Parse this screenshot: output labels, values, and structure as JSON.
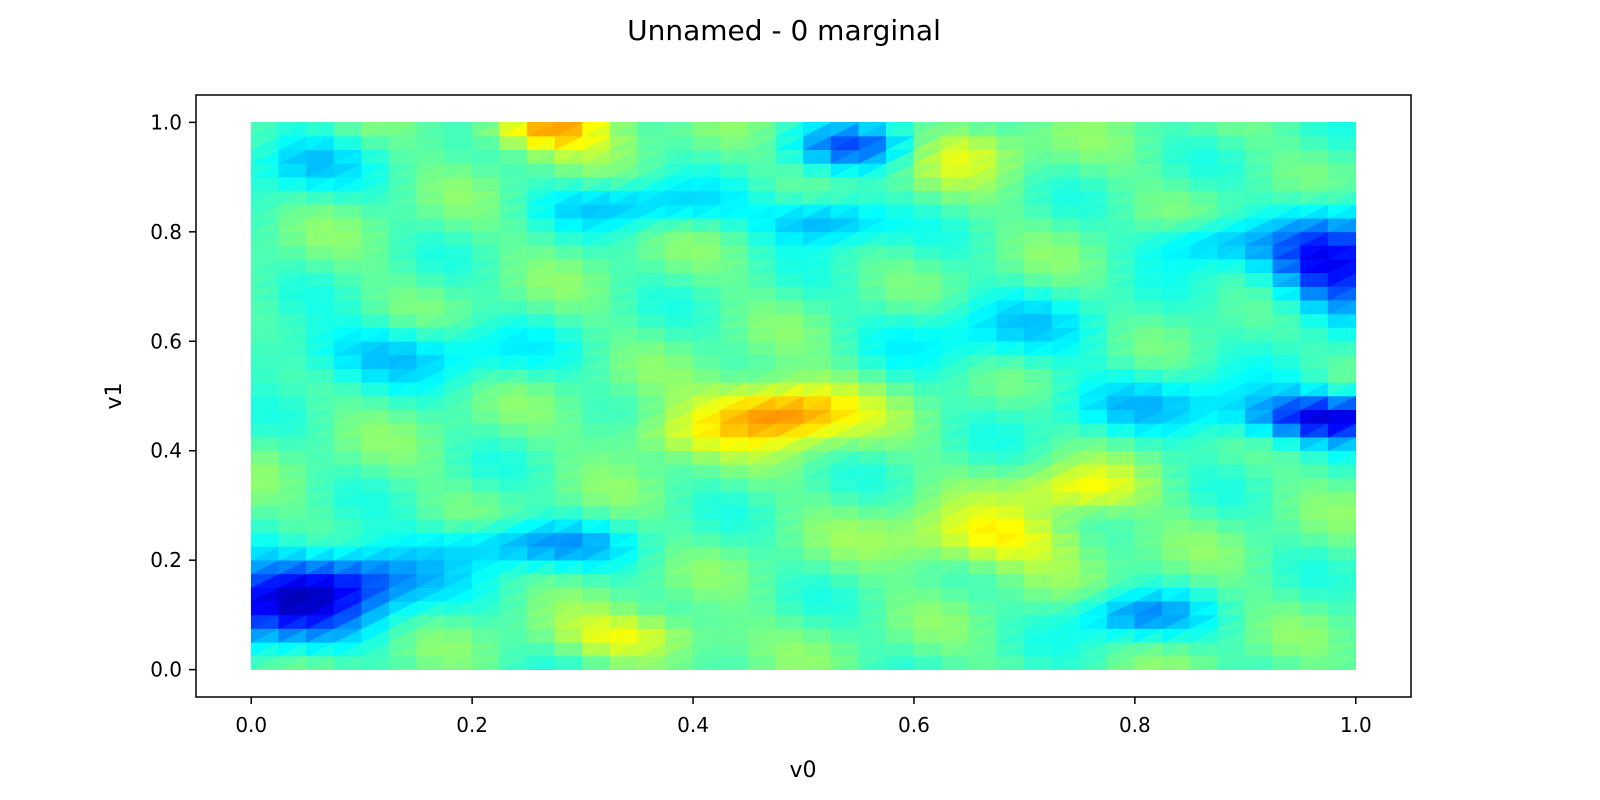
{
  "chart_data": {
    "type": "heatmap",
    "title": "Unnamed - 0 marginal",
    "xlabel": "v0",
    "ylabel": "v1",
    "xlim": [
      -0.05,
      1.05
    ],
    "ylim": [
      -0.05,
      1.05
    ],
    "x_ticks": [
      0.0,
      0.2,
      0.4,
      0.6,
      0.8,
      1.0
    ],
    "y_ticks": [
      0.0,
      0.2,
      0.4,
      0.6,
      0.8,
      1.0
    ],
    "x_tick_labels": [
      "0.0",
      "0.2",
      "0.4",
      "0.6",
      "0.8",
      "1.0"
    ],
    "y_tick_labels": [
      "0.0",
      "0.2",
      "0.4",
      "0.6",
      "0.8",
      "1.0"
    ],
    "colormap": "jet",
    "grid": false,
    "surface": {
      "x_range": [
        0.0,
        1.0
      ],
      "y_range": [
        0.0,
        1.0
      ],
      "base_level": 0.46,
      "features": [
        {
          "x": 0.48,
          "y": 0.47,
          "amplitude": 0.3,
          "spread_x": 0.05,
          "spread_y": 0.04
        },
        {
          "x": 0.27,
          "y": 0.99,
          "amplitude": 0.25,
          "spread_x": 0.04,
          "spread_y": 0.03
        },
        {
          "x": 0.67,
          "y": 0.24,
          "amplitude": 0.17,
          "spread_x": 0.06,
          "spread_y": 0.04
        },
        {
          "x": 0.75,
          "y": 0.33,
          "amplitude": 0.15,
          "spread_x": 0.04,
          "spread_y": 0.03
        },
        {
          "x": 0.35,
          "y": 0.06,
          "amplitude": 0.15,
          "spread_x": 0.05,
          "spread_y": 0.03
        },
        {
          "x": 0.64,
          "y": 0.95,
          "amplitude": 0.12,
          "spread_x": 0.04,
          "spread_y": 0.04
        },
        {
          "x": 0.38,
          "y": 0.43,
          "amplitude": 0.1,
          "spread_x": 0.04,
          "spread_y": 0.03
        },
        {
          "x": 0.02,
          "y": 0.12,
          "amplitude": -0.34,
          "spread_x": 0.06,
          "spread_y": 0.05
        },
        {
          "x": 0.1,
          "y": 0.17,
          "amplitude": -0.22,
          "spread_x": 0.05,
          "spread_y": 0.04
        },
        {
          "x": 0.98,
          "y": 0.46,
          "amplitude": -0.34,
          "spread_x": 0.05,
          "spread_y": 0.03
        },
        {
          "x": 0.98,
          "y": 0.74,
          "amplitude": -0.32,
          "spread_x": 0.04,
          "spread_y": 0.07
        },
        {
          "x": 0.55,
          "y": 0.96,
          "amplitude": -0.22,
          "spread_x": 0.04,
          "spread_y": 0.03
        },
        {
          "x": 0.52,
          "y": 0.82,
          "amplitude": -0.2,
          "spread_x": 0.04,
          "spread_y": 0.03
        },
        {
          "x": 0.25,
          "y": 0.23,
          "amplitude": -0.18,
          "spread_x": 0.06,
          "spread_y": 0.03
        },
        {
          "x": 0.8,
          "y": 0.1,
          "amplitude": -0.18,
          "spread_x": 0.04,
          "spread_y": 0.03
        },
        {
          "x": 0.87,
          "y": 0.78,
          "amplitude": -0.15,
          "spread_x": 0.04,
          "spread_y": 0.03
        },
        {
          "x": 0.35,
          "y": 0.85,
          "amplitude": -0.13,
          "spread_x": 0.06,
          "spread_y": 0.03
        },
        {
          "x": 0.12,
          "y": 0.58,
          "amplitude": -0.12,
          "spread_x": 0.1,
          "spread_y": 0.04
        },
        {
          "x": 0.84,
          "y": 0.48,
          "amplitude": -0.12,
          "spread_x": 0.08,
          "spread_y": 0.04
        },
        {
          "x": 0.68,
          "y": 0.62,
          "amplitude": -0.1,
          "spread_x": 0.08,
          "spread_y": 0.05
        },
        {
          "x": 0.04,
          "y": 0.93,
          "amplitude": -0.13,
          "spread_x": 0.04,
          "spread_y": 0.04
        }
      ]
    }
  }
}
